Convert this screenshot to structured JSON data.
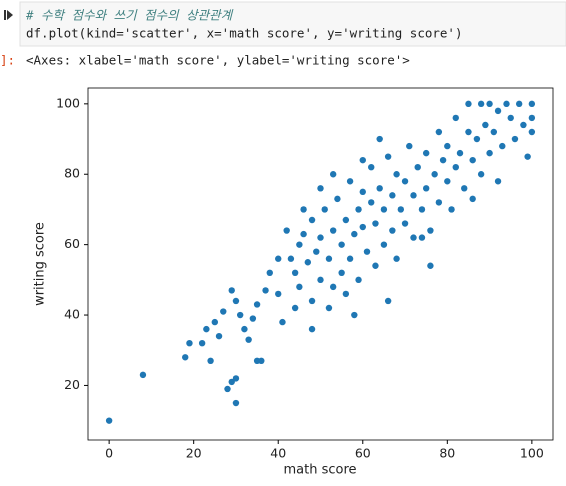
{
  "cell": {
    "code": [
      "# 수학 점수와 쓰기 점수의 상관관계",
      "df.plot(kind='scatter', x='math score', y='writing score')"
    ],
    "prompt": "]:",
    "output": "<Axes: xlabel='math score', ylabel='writing score'>"
  },
  "chart_data": {
    "type": "scatter",
    "xlabel": "math score",
    "ylabel": "writing score",
    "color": "#1f77b4",
    "xlim": [
      -5,
      105
    ],
    "ylim": [
      4.5,
      104.5
    ],
    "xticks": [
      0,
      20,
      40,
      60,
      80,
      100
    ],
    "yticks": [
      20,
      40,
      60,
      80,
      100
    ],
    "x": [
      0,
      8,
      18,
      19,
      22,
      23,
      24,
      25,
      26,
      27,
      28,
      29,
      29,
      30,
      30,
      30,
      31,
      32,
      33,
      34,
      35,
      36,
      35,
      37,
      38,
      40,
      40,
      42,
      41,
      43,
      44,
      45,
      45,
      46,
      47,
      48,
      48,
      49,
      50,
      50,
      51,
      52,
      53,
      53,
      54,
      55,
      55,
      56,
      57,
      57,
      58,
      59,
      59,
      60,
      60,
      61,
      62,
      62,
      63,
      63,
      64,
      65,
      65,
      66,
      67,
      67,
      68,
      68,
      69,
      70,
      70,
      71,
      72,
      72,
      73,
      74,
      75,
      75,
      76,
      77,
      78,
      78,
      79,
      80,
      80,
      81,
      82,
      82,
      83,
      84,
      85,
      85,
      86,
      87,
      88,
      88,
      89,
      90,
      90,
      91,
      92,
      93,
      94,
      95,
      96,
      97,
      98,
      99,
      100,
      100,
      100,
      56,
      58,
      48,
      44,
      52,
      76,
      74,
      86,
      92,
      64,
      60,
      66,
      50,
      46,
      53
    ],
    "values": [
      10,
      23,
      28,
      32,
      32,
      36,
      27,
      38,
      34,
      41,
      19,
      47,
      21,
      15,
      22,
      44,
      40,
      36,
      33,
      39,
      27,
      27,
      43,
      47,
      52,
      46,
      56,
      64,
      38,
      56,
      52,
      60,
      48,
      63,
      55,
      67,
      44,
      58,
      62,
      50,
      70,
      56,
      64,
      48,
      73,
      60,
      52,
      67,
      78,
      56,
      63,
      70,
      50,
      75,
      65,
      58,
      72,
      82,
      66,
      54,
      76,
      70,
      60,
      85,
      74,
      64,
      80,
      56,
      70,
      78,
      66,
      88,
      74,
      62,
      82,
      70,
      86,
      76,
      64,
      80,
      92,
      72,
      84,
      78,
      88,
      70,
      96,
      82,
      86,
      76,
      92,
      100,
      84,
      90,
      100,
      80,
      94,
      86,
      100,
      92,
      98,
      88,
      100,
      96,
      90,
      100,
      94,
      85,
      100,
      96,
      92,
      46,
      40,
      36,
      42,
      42,
      54,
      62,
      73,
      78,
      90,
      84,
      44,
      76,
      70,
      80
    ]
  }
}
